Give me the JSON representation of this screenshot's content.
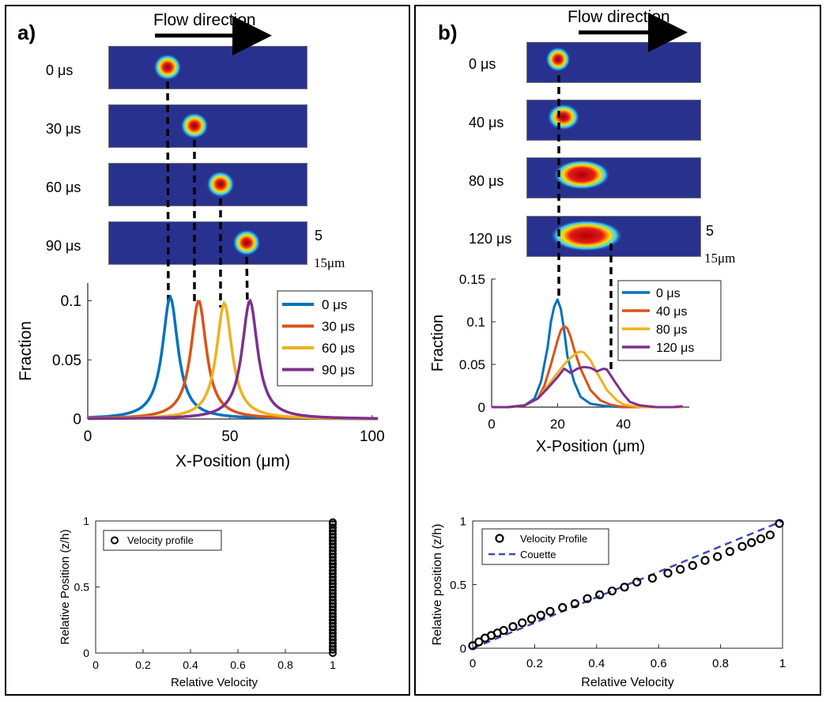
{
  "panel_a": {
    "letter": "a)",
    "flow_label": "Flow direction",
    "time_labels": [
      "0 μs",
      "30 μs",
      "60 μs",
      "90 μs"
    ],
    "scale_labels": [
      "5",
      "15μm"
    ]
  },
  "panel_b": {
    "letter": "b)",
    "flow_label": "Flow direction",
    "time_labels": [
      "0 μs",
      "40 μs",
      "80 μs",
      "120 μs"
    ],
    "scale_labels": [
      "5",
      "15μm"
    ]
  },
  "colors": {
    "blue": "#0072bd",
    "orange": "#d95319",
    "yellow": "#edb120",
    "purple": "#7e2f8e",
    "couette": "#3b4bb4",
    "strip_bg": "#29318f"
  },
  "chart_data": [
    {
      "id": "a_top",
      "type": "line",
      "xlabel": "X-Position (μm)",
      "ylabel": "Fraction",
      "xlim": [
        0,
        102
      ],
      "ylim": [
        0,
        0.115
      ],
      "xticks": [
        "0",
        "50",
        "100"
      ],
      "yticks": [
        "0",
        "0.05",
        "0.1"
      ],
      "legend_position": "top-right",
      "series": [
        {
          "name": "0 μs",
          "color": "#0072bd",
          "peak_x": 29,
          "peak_y": 0.103
        },
        {
          "name": "30 μs",
          "color": "#d95319",
          "peak_x": 39,
          "peak_y": 0.1
        },
        {
          "name": "60 μs",
          "color": "#edb120",
          "peak_x": 48,
          "peak_y": 0.098
        },
        {
          "name": "90 μs",
          "color": "#7e2f8e",
          "peak_x": 57,
          "peak_y": 0.1
        }
      ]
    },
    {
      "id": "b_top",
      "type": "line",
      "xlabel": "X-Position (μm)",
      "ylabel": "Fraction",
      "xlim": [
        0,
        60
      ],
      "ylim": [
        0,
        0.15
      ],
      "xticks": [
        "0",
        "20",
        "40"
      ],
      "yticks": [
        "0",
        "0.05",
        "0.1",
        "0.15"
      ],
      "legend_position": "top-right",
      "series": [
        {
          "name": "0 μs",
          "color": "#0072bd",
          "x": [
            0,
            5,
            10,
            13,
            15,
            17,
            18,
            19,
            20,
            21,
            22,
            23,
            25,
            27,
            30,
            35,
            40,
            45,
            50,
            55,
            58
          ],
          "y": [
            0,
            0,
            0.002,
            0.01,
            0.03,
            0.07,
            0.1,
            0.118,
            0.126,
            0.115,
            0.09,
            0.06,
            0.03,
            0.012,
            0.004,
            0.001,
            0,
            0,
            0,
            0,
            0
          ]
        },
        {
          "name": "40 μs",
          "color": "#d95319",
          "x": [
            0,
            5,
            10,
            14,
            16,
            18,
            20,
            21,
            22,
            23,
            24,
            25,
            27,
            30,
            33,
            36,
            40,
            45,
            50,
            58
          ],
          "y": [
            0,
            0,
            0.002,
            0.01,
            0.025,
            0.05,
            0.078,
            0.09,
            0.095,
            0.092,
            0.082,
            0.068,
            0.045,
            0.02,
            0.008,
            0.003,
            0,
            0,
            0,
            0
          ]
        },
        {
          "name": "80 μs",
          "color": "#edb120",
          "x": [
            0,
            5,
            10,
            14,
            17,
            20,
            22,
            24,
            26,
            27,
            28,
            30,
            32,
            35,
            38,
            40,
            45,
            50,
            58
          ],
          "y": [
            0,
            0,
            0.002,
            0.01,
            0.025,
            0.04,
            0.05,
            0.058,
            0.064,
            0.065,
            0.064,
            0.055,
            0.04,
            0.02,
            0.008,
            0.003,
            0,
            0,
            0
          ]
        },
        {
          "name": "120 μs",
          "color": "#7e2f8e",
          "x": [
            0,
            5,
            10,
            14,
            17,
            20,
            22,
            24,
            26,
            28,
            30,
            32,
            34,
            35,
            37,
            40,
            42,
            45,
            50,
            55,
            58
          ],
          "y": [
            0,
            0,
            0.002,
            0.01,
            0.022,
            0.035,
            0.045,
            0.04,
            0.045,
            0.047,
            0.046,
            0.042,
            0.045,
            0.044,
            0.032,
            0.015,
            0.006,
            0.002,
            0,
            0,
            0.001
          ]
        }
      ]
    },
    {
      "id": "a_bottom",
      "type": "scatter",
      "xlabel": "Relative Velocity",
      "ylabel": "Relative Position (z/h)",
      "xlim": [
        0,
        1
      ],
      "ylim": [
        0,
        1
      ],
      "xticks": [
        "0",
        "0.2",
        "0.4",
        "0.6",
        "0.8",
        "1"
      ],
      "yticks": [
        "0",
        "0.5",
        "1"
      ],
      "legend_position": "top-left",
      "series": [
        {
          "name": "Velocity profile",
          "color": "#000000",
          "x": [
            1,
            1,
            1,
            1,
            1,
            1,
            1,
            1,
            1,
            1,
            1,
            1,
            1,
            1,
            1,
            1,
            1,
            1,
            1,
            1,
            1,
            1,
            1,
            1,
            1,
            1,
            1,
            1,
            1,
            1,
            1,
            1,
            1,
            1,
            1,
            1,
            1,
            1,
            1,
            1,
            1
          ],
          "y": [
            0,
            0.025,
            0.05,
            0.075,
            0.1,
            0.125,
            0.15,
            0.175,
            0.2,
            0.225,
            0.25,
            0.275,
            0.3,
            0.325,
            0.35,
            0.375,
            0.4,
            0.425,
            0.45,
            0.475,
            0.5,
            0.525,
            0.55,
            0.575,
            0.6,
            0.625,
            0.65,
            0.675,
            0.7,
            0.725,
            0.75,
            0.775,
            0.8,
            0.825,
            0.85,
            0.875,
            0.9,
            0.925,
            0.95,
            0.975,
            0.99
          ]
        }
      ]
    },
    {
      "id": "b_bottom",
      "type": "scatter",
      "xlabel": "Relative Velocity",
      "ylabel": "Relative position (z/h)",
      "xlim": [
        0,
        1
      ],
      "ylim": [
        0,
        1
      ],
      "xticks": [
        "0",
        "0.2",
        "0.4",
        "0.6",
        "0.8",
        "1"
      ],
      "yticks": [
        "0",
        "0.5",
        "1"
      ],
      "legend_position": "top-left",
      "series": [
        {
          "name": "Velocity Profile",
          "color": "#000000",
          "x": [
            0,
            0.02,
            0.04,
            0.06,
            0.08,
            0.1,
            0.13,
            0.16,
            0.19,
            0.22,
            0.25,
            0.29,
            0.33,
            0.37,
            0.41,
            0.45,
            0.49,
            0.53,
            0.58,
            0.63,
            0.67,
            0.71,
            0.75,
            0.79,
            0.83,
            0.87,
            0.9,
            0.93,
            0.96,
            0.99
          ],
          "y": [
            0.02,
            0.05,
            0.08,
            0.1,
            0.12,
            0.14,
            0.17,
            0.2,
            0.23,
            0.26,
            0.29,
            0.32,
            0.35,
            0.39,
            0.42,
            0.45,
            0.48,
            0.52,
            0.55,
            0.59,
            0.62,
            0.65,
            0.69,
            0.72,
            0.76,
            0.8,
            0.83,
            0.86,
            0.89,
            0.98
          ]
        },
        {
          "name": "Couette",
          "color": "#3b4bb4",
          "style": "dashed",
          "x": [
            0,
            1
          ],
          "y": [
            0,
            1
          ]
        }
      ]
    }
  ]
}
